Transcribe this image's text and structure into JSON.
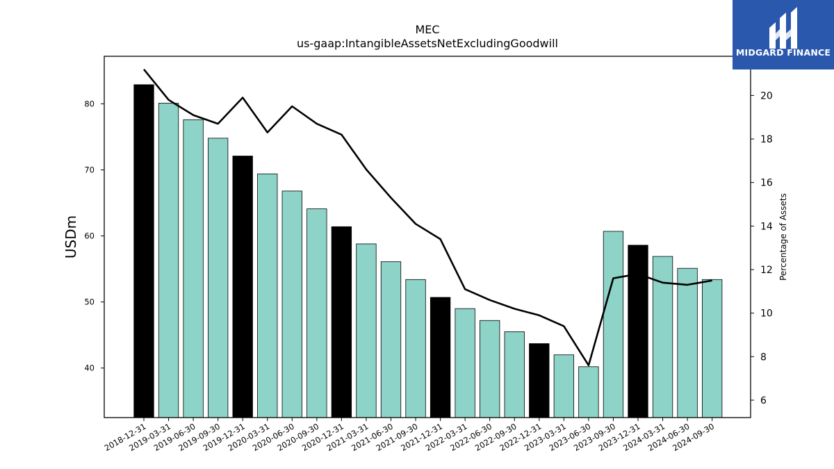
{
  "brand": {
    "name": "MIDGARD FINANCE",
    "background_color": "#2a58ad",
    "text_color": "#ffffff",
    "icon": "midgard-logo-icon"
  },
  "chart_data": {
    "type": "bar",
    "title": "MEC",
    "subtitle": "us-gaap:IntangibleAssetsNetExcludingGoodwill",
    "ylabel": "USDm",
    "y2label": "Percentage of Assets",
    "ylim": [
      32.5,
      87.2
    ],
    "y2lim": [
      5.2,
      21.8
    ],
    "yticks": [
      40,
      50,
      60,
      70,
      80
    ],
    "y2ticks": [
      6,
      8,
      10,
      12,
      14,
      16,
      18,
      20
    ],
    "categories": [
      "2018-12-31",
      "2019-03-31",
      "2019-06-30",
      "2019-09-30",
      "2019-12-31",
      "2020-03-31",
      "2020-06-30",
      "2020-09-30",
      "2020-12-31",
      "2021-03-31",
      "2021-06-30",
      "2021-09-30",
      "2021-12-31",
      "2022-03-31",
      "2022-06-30",
      "2022-09-30",
      "2022-12-31",
      "2023-03-31",
      "2023-06-30",
      "2023-09-30",
      "2023-12-31",
      "2024-03-31",
      "2024-06-30",
      "2024-09-30"
    ],
    "series": [
      {
        "kind": "bar",
        "values": [
          82.9,
          80.1,
          77.6,
          74.8,
          72.1,
          69.4,
          66.8,
          64.1,
          61.4,
          58.8,
          56.1,
          53.4,
          50.7,
          49.0,
          47.2,
          45.5,
          43.7,
          42.0,
          40.2,
          60.7,
          58.6,
          56.9,
          55.1,
          53.4
        ],
        "highlight": [
          true,
          false,
          false,
          false,
          true,
          false,
          false,
          false,
          true,
          false,
          false,
          false,
          true,
          false,
          false,
          false,
          true,
          false,
          false,
          false,
          true,
          false,
          false,
          false
        ],
        "color": "#8dd3c7",
        "highlight_color": "#000000"
      },
      {
        "kind": "line",
        "axis": "secondary",
        "values": [
          21.2,
          19.8,
          19.1,
          18.7,
          19.9,
          18.3,
          19.5,
          18.7,
          18.2,
          16.6,
          15.3,
          14.1,
          13.4,
          11.1,
          10.6,
          10.2,
          9.9,
          9.4,
          7.6,
          11.6,
          11.8,
          11.4,
          11.3,
          11.5
        ],
        "color": "#000000"
      }
    ]
  }
}
